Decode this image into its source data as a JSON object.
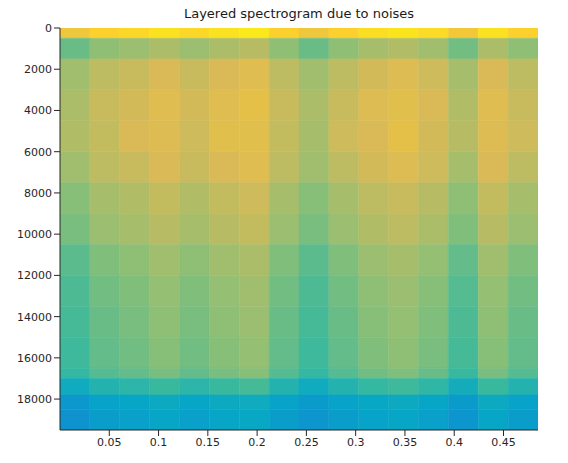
{
  "chart_data": {
    "type": "heatmap",
    "title": "Layered spectrogram due to noises",
    "xlim": [
      0,
      0.485
    ],
    "xticks": [
      0.05,
      0.1,
      0.15,
      0.2,
      0.25,
      0.3,
      0.35,
      0.4,
      0.45
    ],
    "ylim": [
      0,
      19500
    ],
    "yticks": [
      0,
      2000,
      4000,
      6000,
      8000,
      10000,
      12000,
      14000,
      16000,
      18000
    ],
    "x_bins": [
      0,
      0.0303,
      0.0606,
      0.0909,
      0.1213,
      0.1516,
      0.1819,
      0.2122,
      0.2425,
      0.2728,
      0.3031,
      0.3334,
      0.3638,
      0.3941,
      0.4244,
      0.4547,
      0.485
    ],
    "y_bins": [
      0,
      500,
      1500,
      3000,
      4500,
      6000,
      7500,
      9000,
      10500,
      12000,
      13500,
      15000,
      16500,
      17000,
      17800,
      18500,
      19500
    ],
    "cells": [
      [
        0.83,
        0.88,
        0.9,
        0.93,
        0.9,
        0.93,
        0.95,
        0.88,
        0.83,
        0.88,
        0.92,
        0.94,
        0.91,
        0.84,
        0.93,
        0.88
      ],
      [
        0.57,
        0.62,
        0.64,
        0.67,
        0.64,
        0.67,
        0.69,
        0.62,
        0.57,
        0.62,
        0.66,
        0.68,
        0.65,
        0.58,
        0.67,
        0.62
      ],
      [
        0.65,
        0.7,
        0.72,
        0.75,
        0.72,
        0.75,
        0.77,
        0.7,
        0.65,
        0.7,
        0.74,
        0.76,
        0.73,
        0.66,
        0.75,
        0.7
      ],
      [
        0.67,
        0.72,
        0.74,
        0.77,
        0.74,
        0.77,
        0.79,
        0.72,
        0.67,
        0.72,
        0.76,
        0.78,
        0.75,
        0.68,
        0.77,
        0.72
      ],
      [
        0.68,
        0.71,
        0.75,
        0.76,
        0.73,
        0.78,
        0.78,
        0.71,
        0.66,
        0.73,
        0.75,
        0.79,
        0.74,
        0.69,
        0.76,
        0.73
      ],
      [
        0.65,
        0.7,
        0.72,
        0.75,
        0.72,
        0.75,
        0.77,
        0.7,
        0.65,
        0.7,
        0.74,
        0.76,
        0.73,
        0.66,
        0.75,
        0.7
      ],
      [
        0.61,
        0.66,
        0.68,
        0.71,
        0.68,
        0.71,
        0.73,
        0.66,
        0.61,
        0.66,
        0.7,
        0.72,
        0.69,
        0.62,
        0.71,
        0.66
      ],
      [
        0.59,
        0.64,
        0.66,
        0.69,
        0.66,
        0.69,
        0.71,
        0.64,
        0.59,
        0.64,
        0.68,
        0.7,
        0.67,
        0.6,
        0.69,
        0.64
      ],
      [
        0.55,
        0.6,
        0.62,
        0.65,
        0.62,
        0.65,
        0.67,
        0.6,
        0.55,
        0.6,
        0.64,
        0.66,
        0.63,
        0.56,
        0.65,
        0.6
      ],
      [
        0.53,
        0.58,
        0.6,
        0.63,
        0.6,
        0.63,
        0.65,
        0.58,
        0.53,
        0.58,
        0.62,
        0.64,
        0.61,
        0.54,
        0.63,
        0.58
      ],
      [
        0.52,
        0.57,
        0.59,
        0.62,
        0.59,
        0.62,
        0.64,
        0.57,
        0.52,
        0.57,
        0.61,
        0.63,
        0.6,
        0.53,
        0.62,
        0.57
      ],
      [
        0.51,
        0.56,
        0.58,
        0.61,
        0.58,
        0.61,
        0.63,
        0.56,
        0.51,
        0.56,
        0.6,
        0.62,
        0.59,
        0.52,
        0.61,
        0.56
      ],
      [
        0.49,
        0.54,
        0.56,
        0.59,
        0.56,
        0.59,
        0.61,
        0.54,
        0.49,
        0.54,
        0.58,
        0.6,
        0.57,
        0.5,
        0.59,
        0.54
      ],
      [
        0.4,
        0.45,
        0.47,
        0.5,
        0.47,
        0.5,
        0.52,
        0.45,
        0.4,
        0.45,
        0.49,
        0.51,
        0.48,
        0.41,
        0.5,
        0.45
      ],
      [
        0.32,
        0.36,
        0.37,
        0.39,
        0.37,
        0.39,
        0.4,
        0.36,
        0.33,
        0.36,
        0.38,
        0.39,
        0.37,
        0.33,
        0.39,
        0.36
      ],
      [
        0.3,
        0.34,
        0.35,
        0.37,
        0.35,
        0.37,
        0.38,
        0.34,
        0.31,
        0.34,
        0.36,
        0.37,
        0.35,
        0.31,
        0.37,
        0.34
      ]
    ]
  }
}
